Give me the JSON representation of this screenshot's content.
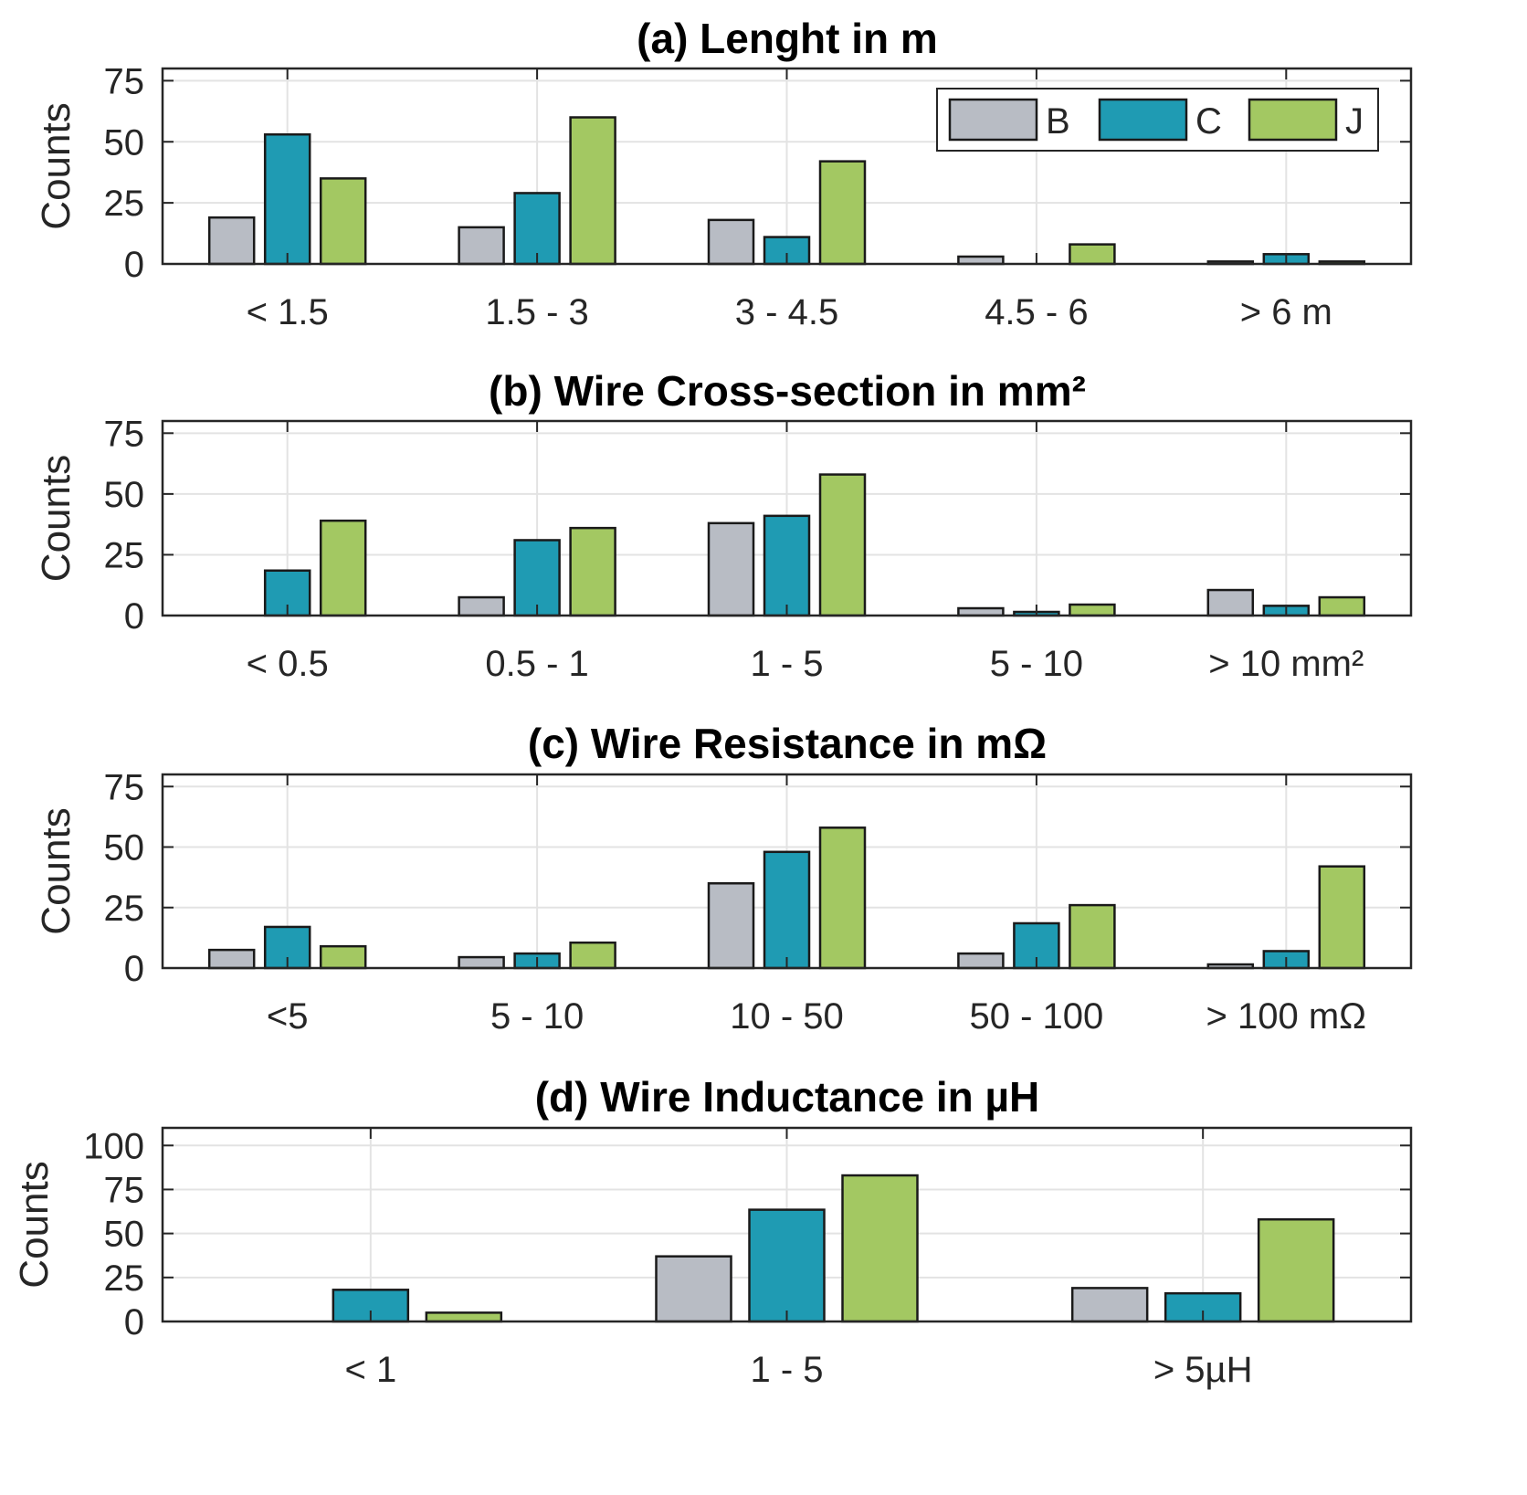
{
  "colors": {
    "B": "#b8bcc4",
    "C": "#1f9bb3",
    "J": "#a3c862"
  },
  "legend": [
    "B",
    "C",
    "J"
  ],
  "chart_data": [
    {
      "type": "bar",
      "title": "(a) Lenght in m",
      "ylabel": "Counts",
      "ylim": [
        0,
        80
      ],
      "yticks": [
        0,
        25,
        50,
        75
      ],
      "categories": [
        "< 1.5",
        "1.5 - 3",
        "3 - 4.5",
        "4.5 - 6",
        "> 6 m"
      ],
      "series": [
        {
          "name": "B",
          "values": [
            19,
            15,
            18,
            3,
            1
          ]
        },
        {
          "name": "C",
          "values": [
            53,
            29,
            11,
            0,
            4
          ]
        },
        {
          "name": "J",
          "values": [
            35,
            60,
            42,
            8,
            1
          ]
        }
      ],
      "legend_position": "top-right",
      "grid": true
    },
    {
      "type": "bar",
      "title": "(b) Wire Cross-section in mm²",
      "ylabel": "Counts",
      "ylim": [
        0,
        80
      ],
      "yticks": [
        0,
        25,
        50,
        75
      ],
      "categories": [
        "< 0.5",
        "0.5 - 1",
        "1 - 5",
        "5 - 10",
        "> 10 mm²"
      ],
      "series": [
        {
          "name": "B",
          "values": [
            0,
            7.5,
            38,
            3,
            10.5
          ]
        },
        {
          "name": "C",
          "values": [
            18.5,
            31,
            41,
            1.5,
            4
          ]
        },
        {
          "name": "J",
          "values": [
            39,
            36,
            58,
            4.5,
            7.5
          ]
        }
      ],
      "grid": true
    },
    {
      "type": "bar",
      "title": "(c) Wire Resistance in mΩ",
      "ylabel": "Counts",
      "ylim": [
        0,
        80
      ],
      "yticks": [
        0,
        25,
        50,
        75
      ],
      "categories": [
        "<5",
        "5 - 10",
        "10 - 50",
        "50 - 100",
        "> 100 mΩ"
      ],
      "series": [
        {
          "name": "B",
          "values": [
            7.5,
            4.5,
            35,
            6,
            1.5
          ]
        },
        {
          "name": "C",
          "values": [
            17,
            6,
            48,
            18.5,
            7
          ]
        },
        {
          "name": "J",
          "values": [
            9,
            10.5,
            58,
            26,
            42
          ]
        }
      ],
      "grid": true
    },
    {
      "type": "bar",
      "title": "(d) Wire Inductance in µH",
      "ylabel": "Counts",
      "ylim": [
        0,
        110
      ],
      "yticks": [
        0,
        25,
        50,
        75,
        100
      ],
      "categories": [
        "< 1",
        "1 - 5",
        "> 5µH"
      ],
      "series": [
        {
          "name": "B",
          "values": [
            0,
            37,
            19
          ]
        },
        {
          "name": "C",
          "values": [
            18,
            63.5,
            16
          ]
        },
        {
          "name": "J",
          "values": [
            5,
            83,
            58
          ]
        }
      ],
      "grid": true
    }
  ]
}
